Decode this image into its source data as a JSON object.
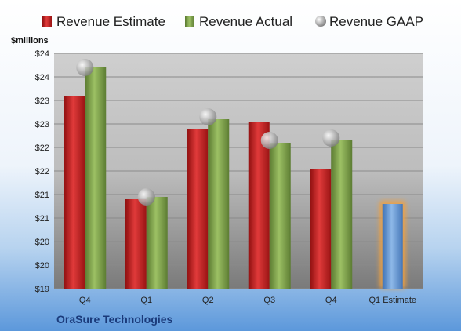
{
  "chart_data": {
    "type": "bar",
    "categories": [
      "Q4",
      "Q1",
      "Q2",
      "Q3",
      "Q4",
      "Q1 Estimate"
    ],
    "series": [
      {
        "name": "Revenue Estimate",
        "values": [
          23.1,
          20.9,
          22.4,
          22.55,
          21.55,
          null
        ],
        "color": "#cc2222"
      },
      {
        "name": "Revenue Actual",
        "values": [
          23.7,
          20.95,
          22.6,
          22.1,
          22.15,
          null
        ],
        "color": "#7fa04a"
      },
      {
        "name": "Revenue GAAP",
        "values": [
          23.7,
          20.95,
          22.65,
          22.15,
          22.2,
          null
        ],
        "color": "#b8b8b8",
        "marker": "circle"
      }
    ],
    "estimate": {
      "category": "Q1 Estimate",
      "value": 20.8,
      "color": "#6a9fd8",
      "glow": "#f0a040"
    },
    "ylabel": "$millions",
    "ylim": [
      19,
      24
    ],
    "yticks": [
      19,
      19.5,
      20,
      20.5,
      21,
      21.5,
      22,
      22.5,
      23,
      23.5,
      24
    ],
    "ytick_labels": [
      "$19",
      "$20",
      "$20",
      "$21",
      "$21",
      "$22",
      "$22",
      "$23",
      "$23",
      "$24",
      "$24"
    ],
    "legend": {
      "placement": "top",
      "entries": [
        "Revenue Estimate",
        "Revenue Actual",
        "Revenue GAAP"
      ]
    },
    "grid": true
  },
  "footer": {
    "company": "OraSure Technologies"
  }
}
